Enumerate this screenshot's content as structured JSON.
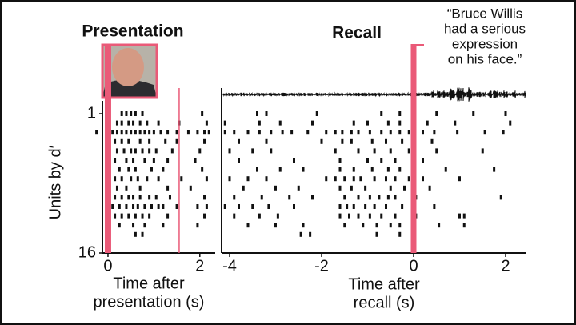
{
  "chart_data": [
    {
      "type": "raster",
      "title": "Presentation",
      "ylabel": "Units by d′",
      "xlabel": [
        "Time after",
        "presentation (s)"
      ],
      "xlim": [
        -0.3,
        2.3
      ],
      "xticks": [
        0,
        2
      ],
      "ylim": [
        0,
        16
      ],
      "yticks": [
        1,
        16
      ],
      "y_inverted": true,
      "events": [
        0,
        1.55
      ],
      "event_color": "#ea5a78",
      "spike_color": "#111111",
      "units": [
        [
          0.3,
          0.4,
          0.5,
          0.6,
          0.75,
          2.05
        ],
        [
          0.2,
          0.3,
          0.45,
          0.55,
          0.7,
          0.85,
          1.1,
          1.55,
          2.15
        ],
        [
          -0.25,
          0.1,
          0.2,
          0.3,
          0.4,
          0.5,
          0.6,
          0.7,
          0.8,
          0.9,
          1.0,
          1.15,
          1.3,
          1.5,
          1.75,
          1.95,
          2.1,
          2.2
        ],
        [
          0.15,
          0.3,
          0.45,
          0.7,
          0.9,
          1.25,
          1.5,
          2.1
        ],
        [
          0.2,
          0.35,
          0.5,
          0.6,
          0.75,
          0.9,
          1.05,
          1.4,
          2.0
        ],
        [
          0.15,
          0.4,
          0.55,
          0.8,
          1.0,
          1.3,
          1.9
        ],
        [
          0.25,
          0.45,
          0.6,
          0.95,
          1.2,
          2.05
        ],
        [
          0.15,
          0.3,
          0.5,
          0.65,
          0.85,
          1.1,
          1.6,
          2.15
        ],
        [
          0.2,
          0.4,
          0.7,
          1.3,
          1.8
        ],
        [
          0.15,
          0.3,
          0.45,
          0.55,
          0.7,
          0.9,
          1.05,
          1.35,
          2.1
        ],
        [
          0.1,
          0.25,
          0.4,
          0.55,
          0.65,
          0.8,
          0.95,
          1.1,
          1.2,
          1.5,
          1.95,
          2.15
        ],
        [
          0.15,
          0.3,
          0.45,
          0.6,
          0.75,
          0.9,
          1.3,
          2.1
        ],
        [
          0.25,
          0.55,
          0.8,
          1.2,
          1.95
        ],
        [
          0.6,
          0.75
        ]
      ]
    },
    {
      "type": "raster",
      "title": "Recall",
      "annotation": [
        "“Bruce Willis",
        "had a serious",
        "expression",
        "on his face.”"
      ],
      "xlabel": [
        "Time after",
        "recall (s)"
      ],
      "xlim": [
        -4.2,
        2.4
      ],
      "xticks": [
        -4,
        -2,
        0,
        2
      ],
      "ylim": [
        0,
        16
      ],
      "y_inverted": true,
      "events": [
        0
      ],
      "event_color": "#ea5a78",
      "spike_color": "#111111",
      "units": [
        [
          -3.4,
          -3.2,
          -2.1,
          -0.7,
          -0.3,
          0.5,
          1.3,
          2.0
        ],
        [
          -4.1,
          -3.35,
          -2.9,
          -2.2,
          -1.3,
          -1.0,
          -0.55,
          -0.3,
          0.3,
          0.9,
          2.1
        ],
        [
          -4.1,
          -3.9,
          -3.6,
          -3.35,
          -3.1,
          -2.85,
          -2.65,
          -2.3,
          -1.9,
          -1.7,
          -1.55,
          -1.35,
          -1.2,
          -0.95,
          -0.7,
          -0.5,
          -0.3,
          -0.1,
          0.2,
          0.45,
          0.95,
          1.55,
          1.95
        ],
        [
          -3.8,
          -3.2,
          -2.0,
          -1.55,
          -1.35,
          -0.9,
          -0.6,
          -0.25,
          0.4
        ],
        [
          -4.0,
          -3.5,
          -3.1,
          -1.7,
          -1.2,
          -0.85,
          -0.5,
          -0.1,
          0.0,
          0.5,
          1.5
        ],
        [
          -3.8,
          -2.6,
          -1.6,
          -1.0,
          -0.7,
          -0.4,
          0.2
        ],
        [
          -3.4,
          -2.9,
          -2.4,
          -1.6,
          -1.3,
          -0.9,
          -0.55,
          -0.3,
          0.7,
          1.75
        ],
        [
          -4.0,
          -3.6,
          -3.2,
          -1.9,
          -1.7,
          -1.5,
          -1.3,
          -1.15,
          -0.85,
          -0.6,
          -0.4,
          -0.1,
          0.2,
          1.0
        ],
        [
          -3.7,
          -3.0,
          -2.5,
          -1.6,
          -1.35,
          -1.05,
          -0.5,
          -0.2,
          0.35
        ],
        [
          -3.9,
          -3.3,
          -2.7,
          -2.2,
          -1.5,
          -1.2,
          -0.95,
          -0.75,
          -0.55,
          -0.4,
          0.05,
          1.9
        ],
        [
          -4.1,
          -3.8,
          -3.5,
          -3.15,
          -2.6,
          -1.6,
          -1.45,
          -1.3,
          -1.05,
          -0.85,
          -0.6,
          -0.25,
          0.0,
          0.45
        ],
        [
          -3.9,
          -3.35,
          -2.95,
          -1.6,
          -1.4,
          -1.2,
          -0.95,
          -0.7,
          -0.4,
          0.05,
          1.0,
          1.1
        ],
        [
          -3.6,
          -3.0,
          -2.4,
          -1.5,
          -1.1,
          -0.8,
          -0.5,
          -0.3,
          0.55,
          1.1
        ],
        [
          -2.45,
          -2.25,
          -0.8,
          -0.3
        ]
      ]
    }
  ]
}
